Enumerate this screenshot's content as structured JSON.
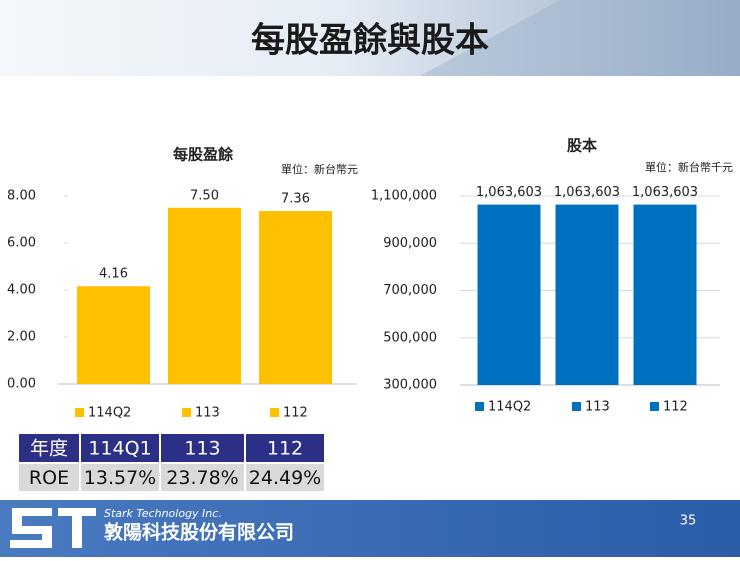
{
  "header": {
    "title": "每股盈餘與股本"
  },
  "chart_data": [
    {
      "type": "bar",
      "title": "每股盈餘",
      "unit": "單位：新台幣元",
      "categories": [
        "114Q2",
        "113",
        "112"
      ],
      "values": [
        4.16,
        7.5,
        7.36
      ],
      "value_labels": [
        "4.16",
        "7.50",
        "7.36"
      ],
      "color": "#ffc000",
      "ylim": [
        0,
        8
      ],
      "yticks": [
        {
          "value": 0,
          "label": "0.00"
        },
        {
          "value": 2,
          "label": "2.00"
        },
        {
          "value": 4,
          "label": "4.00"
        },
        {
          "value": 6,
          "label": "6.00"
        },
        {
          "value": 8,
          "label": "8.00"
        }
      ],
      "grid": false,
      "legend": "bottom"
    },
    {
      "type": "bar",
      "title": "股本",
      "unit": "單位：新台幣千元",
      "categories": [
        "114Q2",
        "113",
        "112"
      ],
      "values": [
        1063603,
        1063603,
        1063603
      ],
      "value_labels": [
        "1,063,603",
        "1,063,603",
        "1,063,603"
      ],
      "color": "#0070c0",
      "ylim": [
        300000,
        1100000
      ],
      "yticks": [
        {
          "value": 300000,
          "label": "300,000"
        },
        {
          "value": 500000,
          "label": "500,000"
        },
        {
          "value": 700000,
          "label": "700,000"
        },
        {
          "value": 900000,
          "label": "900,000"
        },
        {
          "value": 1100000,
          "label": "1,100,000"
        }
      ],
      "grid": true,
      "legend": "bottom"
    }
  ],
  "table": {
    "header": [
      "年度",
      "114Q1",
      "113",
      "112"
    ],
    "rows": [
      [
        "ROE",
        "13.57%",
        "23.78%",
        "24.49%"
      ]
    ]
  },
  "footer": {
    "company_en": "Stark Technology Inc.",
    "company_zh": "敦陽科技股份有限公司",
    "page": "35"
  }
}
